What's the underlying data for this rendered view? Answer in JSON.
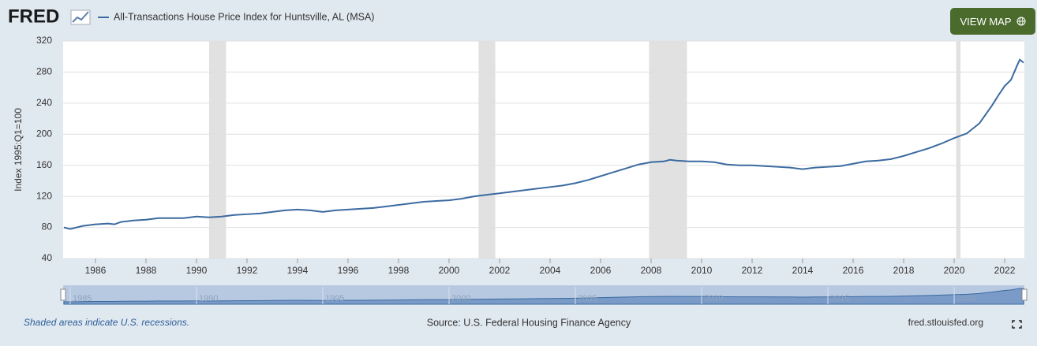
{
  "header": {
    "logo": "FRED",
    "button": "VIEW MAP"
  },
  "chart_data": {
    "type": "line",
    "y_label": "Index 1995:Q1=100",
    "x": [
      1984.75,
      1985.0,
      1985.5,
      1986.0,
      1986.5,
      1986.75,
      1987.0,
      1987.5,
      1988.0,
      1988.5,
      1989.0,
      1989.5,
      1990.0,
      1990.5,
      1991.0,
      1991.5,
      1992.0,
      1992.5,
      1993.0,
      1993.5,
      1994.0,
      1994.5,
      1995.0,
      1995.5,
      1996.0,
      1996.5,
      1997.0,
      1997.5,
      1998.0,
      1998.5,
      1999.0,
      1999.5,
      2000.0,
      2000.5,
      2001.0,
      2001.5,
      2002.0,
      2002.5,
      2003.0,
      2003.5,
      2004.0,
      2004.5,
      2005.0,
      2005.5,
      2006.0,
      2006.5,
      2007.0,
      2007.5,
      2008.0,
      2008.5,
      2008.75,
      2009.0,
      2009.5,
      2010.0,
      2010.5,
      2011.0,
      2011.5,
      2012.0,
      2012.5,
      2013.0,
      2013.5,
      2014.0,
      2014.5,
      2015.0,
      2015.5,
      2016.0,
      2016.5,
      2017.0,
      2017.5,
      2018.0,
      2018.5,
      2019.0,
      2019.5,
      2020.0,
      2020.5,
      2021.0,
      2021.5,
      2021.75,
      2022.0,
      2022.25,
      2022.5,
      2022.6,
      2022.75
    ],
    "series": [
      {
        "name": "All-Transactions House Price Index for Huntsville, AL (MSA)",
        "color": "#3b6aa0",
        "values": [
          80,
          78,
          82,
          84,
          85,
          84,
          87,
          89,
          90,
          92,
          92,
          92,
          94,
          93,
          94,
          96,
          97,
          98,
          100,
          102,
          103,
          102,
          100,
          102,
          103,
          104,
          105,
          107,
          109,
          111,
          113,
          114,
          115,
          117,
          120,
          122,
          124,
          126,
          128,
          130,
          132,
          134,
          137,
          141,
          146,
          151,
          156,
          161,
          164,
          165,
          167,
          166,
          165,
          165,
          164,
          161,
          160,
          160,
          159,
          158,
          157,
          155,
          157,
          158,
          159,
          162,
          165,
          166,
          168,
          172,
          177,
          182,
          188,
          195,
          201,
          214,
          237,
          250,
          262,
          270,
          289,
          296,
          292
        ]
      }
    ],
    "xlim": [
      1984.72,
      2022.78
    ],
    "xticks": [
      1986,
      1988,
      1990,
      1992,
      1994,
      1996,
      1998,
      2000,
      2002,
      2004,
      2006,
      2008,
      2010,
      2012,
      2014,
      2016,
      2018,
      2020,
      2022
    ],
    "ylim": [
      40,
      320
    ],
    "yticks": [
      40,
      80,
      120,
      160,
      200,
      240,
      280,
      320
    ],
    "grid": true,
    "recessions": [
      [
        1990.5,
        1991.17
      ],
      [
        2001.17,
        2001.83
      ],
      [
        2007.92,
        2009.42
      ],
      [
        2020.08,
        2020.25
      ]
    ],
    "navigator_ticks": [
      1985,
      1990,
      1995,
      2000,
      2005,
      2010,
      2015,
      2020
    ]
  },
  "footer": {
    "note": "Shaded areas indicate U.S. recessions.",
    "source": "Source: U.S. Federal Housing Finance Agency",
    "site": "fred.stlouisfed.org"
  }
}
